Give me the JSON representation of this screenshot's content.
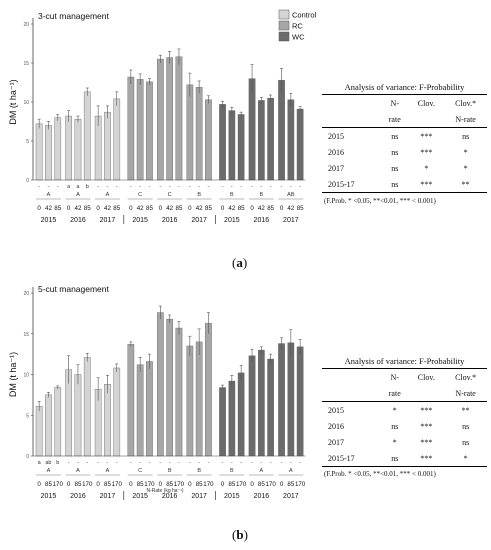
{
  "chart_data": [
    {
      "type": "bar",
      "panel_tag": "a",
      "title": "3-cut management",
      "ylabel": "DM (t ha⁻¹)",
      "xlabel": "",
      "ylim": [
        0,
        20
      ],
      "yticks": [
        0,
        5,
        10,
        15,
        20
      ],
      "grid": false,
      "legend_position": "top-center",
      "legend": [
        "Control",
        "RC",
        "WC"
      ],
      "colors": {
        "Control": "#d4d4d4",
        "RC": "#a6a6a6",
        "WC": "#6b6b6b"
      },
      "groups": [
        {
          "treatment": "Control",
          "year": "2015",
          "letter": "A",
          "nrates": [
            "0",
            "42",
            "85"
          ],
          "values": [
            7.2,
            7.0,
            8.0
          ],
          "errors": [
            0.6,
            0.5,
            0.4
          ],
          "sig": [
            "-",
            "-",
            "-"
          ]
        },
        {
          "treatment": "Control",
          "year": "2016",
          "letter": "A",
          "nrates": [
            "0",
            "42",
            "85"
          ],
          "values": [
            8.2,
            7.8,
            11.3
          ],
          "errors": [
            0.7,
            0.4,
            0.5
          ],
          "sig": [
            "a",
            "a",
            "b"
          ]
        },
        {
          "treatment": "Control",
          "year": "2017",
          "letter": "A",
          "nrates": [
            "0",
            "42",
            "85"
          ],
          "values": [
            8.2,
            8.7,
            10.4
          ],
          "errors": [
            1.3,
            0.8,
            0.9
          ],
          "sig": [
            "-",
            "-",
            "-"
          ]
        },
        {
          "treatment": "RC",
          "year": "2015",
          "letter": "C",
          "nrates": [
            "0",
            "42",
            "85"
          ],
          "values": [
            13.2,
            12.9,
            12.6
          ],
          "errors": [
            0.9,
            0.7,
            0.4
          ],
          "sig": [
            "-",
            "-",
            "-"
          ]
        },
        {
          "treatment": "RC",
          "year": "2016",
          "letter": "C",
          "nrates": [
            "0",
            "42",
            "85"
          ],
          "values": [
            15.5,
            15.7,
            15.8
          ],
          "errors": [
            0.5,
            0.8,
            1.0
          ],
          "sig": [
            "-",
            "-",
            "-"
          ]
        },
        {
          "treatment": "RC",
          "year": "2017",
          "letter": "B",
          "nrates": [
            "0",
            "42",
            "85"
          ],
          "values": [
            12.2,
            11.9,
            10.3
          ],
          "errors": [
            1.5,
            0.8,
            0.5
          ],
          "sig": [
            "-",
            "-",
            "-"
          ]
        },
        {
          "treatment": "WC",
          "year": "2015",
          "letter": "B",
          "nrates": [
            "0",
            "42",
            "85"
          ],
          "values": [
            9.7,
            8.9,
            8.4
          ],
          "errors": [
            0.4,
            0.4,
            0.3
          ],
          "sig": [
            "-",
            "-",
            "-"
          ]
        },
        {
          "treatment": "WC",
          "year": "2016",
          "letter": "B",
          "nrates": [
            "0",
            "42",
            "85"
          ],
          "values": [
            13.0,
            10.2,
            10.5
          ],
          "errors": [
            1.8,
            0.4,
            0.4
          ],
          "sig": [
            "-",
            "-",
            "-"
          ]
        },
        {
          "treatment": "WC",
          "year": "2017",
          "letter": "AB",
          "nrates": [
            "0",
            "42",
            "85"
          ],
          "values": [
            12.8,
            10.3,
            9.1
          ],
          "errors": [
            1.5,
            0.8,
            0.3
          ],
          "sig": [
            "-",
            "-",
            "-"
          ]
        }
      ]
    },
    {
      "type": "bar",
      "panel_tag": "b",
      "title": "5-cut management",
      "ylabel": "DM (t ha⁻¹)",
      "xlabel": "N-Rate (kg ha⁻¹)",
      "ylim": [
        0,
        20
      ],
      "yticks": [
        0,
        5,
        10,
        15,
        20
      ],
      "grid": false,
      "colors": {
        "Control": "#d4d4d4",
        "RC": "#a6a6a6",
        "WC": "#6b6b6b"
      },
      "groups": [
        {
          "treatment": "Control",
          "year": "2015",
          "letter": "A",
          "nrates": [
            "0",
            "85",
            "170"
          ],
          "values": [
            6.1,
            7.5,
            8.4
          ],
          "errors": [
            0.6,
            0.3,
            0.2
          ],
          "sig": [
            "a",
            "ab",
            "b"
          ]
        },
        {
          "treatment": "Control",
          "year": "2016",
          "letter": "A",
          "nrates": [
            "0",
            "85",
            "170"
          ],
          "values": [
            10.6,
            10.0,
            12.1
          ],
          "errors": [
            1.7,
            1.2,
            0.5
          ],
          "sig": [
            "-",
            "-",
            "-"
          ]
        },
        {
          "treatment": "Control",
          "year": "2017",
          "letter": "A",
          "nrates": [
            "0",
            "85",
            "170"
          ],
          "values": [
            8.2,
            8.8,
            10.8
          ],
          "errors": [
            1.4,
            1.1,
            0.5
          ],
          "sig": [
            "-",
            "-",
            "-"
          ]
        },
        {
          "treatment": "RC",
          "year": "2015",
          "letter": "C",
          "nrates": [
            "0",
            "85",
            "170"
          ],
          "values": [
            13.7,
            11.2,
            11.6
          ],
          "errors": [
            0.3,
            0.9,
            0.9
          ],
          "sig": [
            "-",
            "-",
            "-"
          ]
        },
        {
          "treatment": "RC",
          "year": "2016",
          "letter": "B",
          "nrates": [
            "0",
            "85",
            "170"
          ],
          "values": [
            17.6,
            16.8,
            15.7
          ],
          "errors": [
            0.8,
            0.5,
            0.8
          ],
          "sig": [
            "-",
            "-",
            "-"
          ]
        },
        {
          "treatment": "RC",
          "year": "2017",
          "letter": "B",
          "nrates": [
            "0",
            "85",
            "170"
          ],
          "values": [
            13.5,
            14.0,
            16.3
          ],
          "errors": [
            1.2,
            1.6,
            1.3
          ],
          "sig": [
            "-",
            "-",
            "-"
          ]
        },
        {
          "treatment": "WC",
          "year": "2015",
          "letter": "B",
          "nrates": [
            "0",
            "85",
            "170"
          ],
          "values": [
            8.4,
            9.2,
            10.2
          ],
          "errors": [
            0.3,
            0.7,
            0.9
          ],
          "sig": [
            "-",
            "-",
            "-"
          ]
        },
        {
          "treatment": "WC",
          "year": "2016",
          "letter": "A",
          "nrates": [
            "0",
            "85",
            "170"
          ],
          "values": [
            12.3,
            13.0,
            11.9
          ],
          "errors": [
            0.8,
            0.4,
            0.6
          ],
          "sig": [
            "-",
            "-",
            "-"
          ]
        },
        {
          "treatment": "WC",
          "year": "2017",
          "letter": "A",
          "nrates": [
            "0",
            "85",
            "170"
          ],
          "values": [
            13.8,
            13.9,
            13.4
          ],
          "errors": [
            0.7,
            1.6,
            0.9
          ],
          "sig": [
            "-",
            "-",
            "-"
          ]
        }
      ]
    }
  ],
  "anova_a": {
    "title": "Analysis of variance: F-Probability",
    "headers": [
      "",
      "N-",
      "Clov.",
      "Clov.*"
    ],
    "headers2": [
      "",
      "rate",
      "",
      "N-rate"
    ],
    "rows": [
      [
        "2015",
        "ns",
        "***",
        "ns"
      ],
      [
        "2016",
        "ns",
        "***",
        "*"
      ],
      [
        "2017",
        "ns",
        "*",
        "*"
      ],
      [
        "2015-17",
        "ns",
        "***",
        "**"
      ]
    ],
    "footnote": "(F.Prob. * <0.05, **<0.01, *** < 0.001)"
  },
  "anova_b": {
    "title": "Analysis of variance: F-Probability",
    "headers": [
      "",
      "N-",
      "Clov.",
      "Clov.*"
    ],
    "headers2": [
      "",
      "rate",
      "",
      "N-rate"
    ],
    "rows": [
      [
        "2015",
        "*",
        "***",
        "**"
      ],
      [
        "2016",
        "ns",
        "***",
        "ns"
      ],
      [
        "2017",
        "*",
        "***",
        "ns"
      ],
      [
        "2015-17",
        "ns",
        "***",
        "*"
      ]
    ],
    "footnote": "(F.Prob. * <0.05, **<0.01, *** < 0.001)"
  },
  "captions": {
    "a": {
      "open": "(",
      "tag": "a",
      "close": ")"
    },
    "b": {
      "open": "(",
      "tag": "b",
      "close": ")"
    }
  }
}
